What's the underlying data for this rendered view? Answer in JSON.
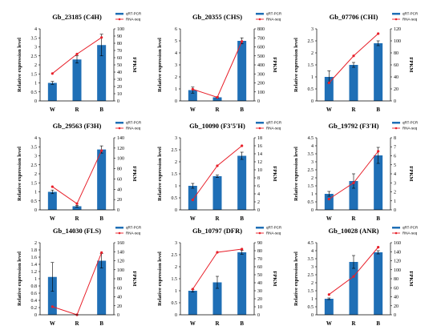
{
  "colors": {
    "bar": "#1f6fb6",
    "line": "#e8202a",
    "axis": "#000000"
  },
  "legend": {
    "bar_label": "qRT-PCR",
    "line_label": "RNA-seq"
  },
  "chart_data": [
    {
      "type": "bar",
      "title": "Gb_23185 (C4H)",
      "categories": [
        "W",
        "R",
        "B"
      ],
      "series": [
        {
          "name": "qRT-PCR",
          "type": "bar",
          "axis": "left",
          "values": [
            1.0,
            2.3,
            3.1
          ],
          "errors": [
            0.08,
            0.2,
            0.6
          ]
        },
        {
          "name": "RNA-seq",
          "type": "line",
          "axis": "right",
          "values": [
            38,
            65,
            88
          ]
        }
      ],
      "ylabel": "Relative expression level",
      "y2label": "FPKM",
      "ylim": [
        0,
        4
      ],
      "ystep": 0.5,
      "y2lim": [
        0,
        100
      ],
      "y2step": 10
    },
    {
      "type": "bar",
      "title": "Gb_20355 (CHS)",
      "categories": [
        "W",
        "R",
        "B"
      ],
      "series": [
        {
          "name": "qRT-PCR",
          "type": "bar",
          "axis": "left",
          "values": [
            0.9,
            0.3,
            5.0
          ],
          "errors": [
            0.25,
            0.05,
            0.25
          ]
        },
        {
          "name": "RNA-seq",
          "type": "line",
          "axis": "right",
          "values": [
            130,
            40,
            660
          ]
        }
      ],
      "ylabel": "Relative expression level",
      "y2label": "FPKM",
      "ylim": [
        0,
        6
      ],
      "ystep": 1,
      "y2lim": [
        0,
        800
      ],
      "y2step": 100
    },
    {
      "type": "bar",
      "title": "Gb_07706 (CHI)",
      "categories": [
        "W",
        "R",
        "B"
      ],
      "series": [
        {
          "name": "qRT-PCR",
          "type": "bar",
          "axis": "left",
          "values": [
            1.0,
            1.5,
            2.4
          ],
          "errors": [
            0.25,
            0.1,
            0.1
          ]
        },
        {
          "name": "RNA-seq",
          "type": "line",
          "axis": "right",
          "values": [
            30,
            75,
            112
          ]
        }
      ],
      "ylabel": "Relative expression level",
      "y2label": "FPKM",
      "ylim": [
        0,
        3
      ],
      "ystep": 0.5,
      "y2lim": [
        0,
        120
      ],
      "y2step": 20
    },
    {
      "type": "bar",
      "title": "Gb_29563 (F3H)",
      "categories": [
        "W",
        "R",
        "B"
      ],
      "series": [
        {
          "name": "qRT-PCR",
          "type": "bar",
          "axis": "left",
          "values": [
            1.0,
            0.2,
            3.35
          ],
          "errors": [
            0.1,
            0.05,
            0.2
          ]
        },
        {
          "name": "RNA-seq",
          "type": "line",
          "axis": "right",
          "values": [
            45,
            12,
            115
          ]
        }
      ],
      "ylabel": "Relative expression level",
      "y2label": "FPKM",
      "ylim": [
        0,
        4
      ],
      "ystep": 0.5,
      "y2lim": [
        0,
        140
      ],
      "y2step": 20
    },
    {
      "type": "bar",
      "title": "Gb_10090 (F3'5'H)",
      "categories": [
        "W",
        "R",
        "B"
      ],
      "series": [
        {
          "name": "qRT-PCR",
          "type": "bar",
          "axis": "left",
          "values": [
            1.0,
            1.4,
            2.25
          ],
          "errors": [
            0.1,
            0.05,
            0.15
          ]
        },
        {
          "name": "RNA-seq",
          "type": "line",
          "axis": "right",
          "values": [
            2.5,
            11,
            16
          ]
        }
      ],
      "ylabel": "Relative expression level",
      "y2label": "FPKM",
      "ylim": [
        0,
        3
      ],
      "ystep": 0.5,
      "y2lim": [
        0,
        18
      ],
      "y2step": 2
    },
    {
      "type": "bar",
      "title": "Gb_19792 (F3'H)",
      "categories": [
        "W",
        "R",
        "B"
      ],
      "series": [
        {
          "name": "qRT-PCR",
          "type": "bar",
          "axis": "left",
          "values": [
            1.0,
            1.8,
            3.4
          ],
          "errors": [
            0.15,
            0.45,
            0.5
          ]
        },
        {
          "name": "RNA-seq",
          "type": "line",
          "axis": "right",
          "values": [
            1.2,
            3.0,
            6.5
          ]
        }
      ],
      "ylabel": "Relative expression level",
      "y2label": "FPKM",
      "ylim": [
        0,
        4.5
      ],
      "ystep": 0.5,
      "y2lim": [
        0,
        8
      ],
      "y2step": 1
    },
    {
      "type": "bar",
      "title": "Gb_14030 (FLS)",
      "categories": [
        "W",
        "R",
        "B"
      ],
      "series": [
        {
          "name": "qRT-PCR",
          "type": "bar",
          "axis": "left",
          "values": [
            1.05,
            0.0,
            1.5
          ],
          "errors": [
            0.4,
            0.0,
            0.2
          ]
        },
        {
          "name": "RNA-seq",
          "type": "line",
          "axis": "right",
          "values": [
            18,
            0,
            138
          ]
        }
      ],
      "ylabel": "Relative expression level",
      "y2label": "FPKM",
      "ylim": [
        0,
        2
      ],
      "ystep": 0.2,
      "y2lim": [
        0,
        160
      ],
      "y2step": 20
    },
    {
      "type": "bar",
      "title": "Gb_10797 (DFR)",
      "categories": [
        "W",
        "R",
        "B"
      ],
      "series": [
        {
          "name": "qRT-PCR",
          "type": "bar",
          "axis": "left",
          "values": [
            1.0,
            1.35,
            2.6
          ],
          "errors": [
            0.05,
            0.25,
            0.08
          ]
        },
        {
          "name": "RNA-seq",
          "type": "line",
          "axis": "right",
          "values": [
            32,
            78,
            82
          ]
        }
      ],
      "ylabel": "Relative expression level",
      "y2label": "FPKM",
      "ylim": [
        0,
        3
      ],
      "ystep": 0.5,
      "y2lim": [
        0,
        90
      ],
      "y2step": 10
    },
    {
      "type": "bar",
      "title": "Gb_10028 (ANR)",
      "categories": [
        "W",
        "R",
        "B"
      ],
      "series": [
        {
          "name": "qRT-PCR",
          "type": "bar",
          "axis": "left",
          "values": [
            1.0,
            3.3,
            3.9
          ],
          "errors": [
            0.05,
            0.4,
            0.1
          ]
        },
        {
          "name": "RNA-seq",
          "type": "line",
          "axis": "right",
          "values": [
            45,
            85,
            150
          ]
        }
      ],
      "ylabel": "Relative expression level",
      "y2label": "FPKM",
      "ylim": [
        0,
        4.5
      ],
      "ystep": 0.5,
      "y2lim": [
        0,
        160
      ],
      "y2step": 20
    }
  ]
}
